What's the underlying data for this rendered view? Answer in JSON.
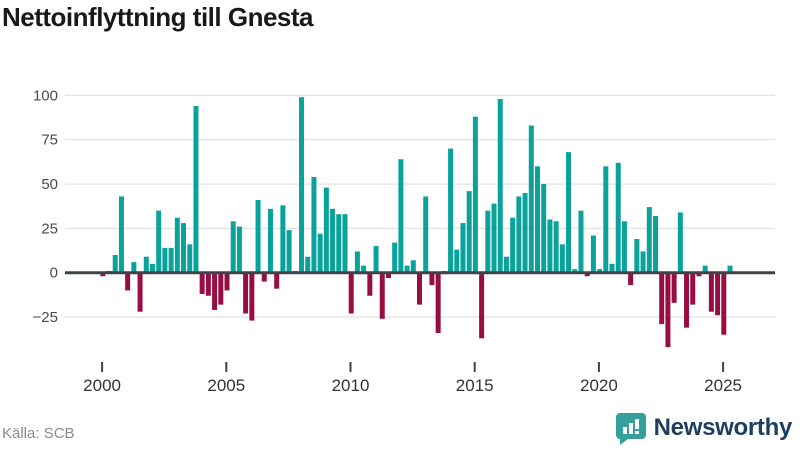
{
  "title": "Nettoinflyttning till Gnesta",
  "source_label": "Källa: SCB",
  "branding": {
    "name": "Newsworthy",
    "icon": "speech-bubble-bar-chart-icon"
  },
  "colors": {
    "positive_bar": "#0aa29a",
    "negative_bar": "#970e44",
    "zero_axis": "#3d4349",
    "gridline": "#e4e4e4",
    "y_label": "#4a4a4a",
    "x_label": "#333333",
    "title": "#191919",
    "source": "#8a8a8a",
    "brand_icon": "#35a09b",
    "brand_text": "#1d3f5f"
  },
  "chart_data": {
    "type": "bar",
    "title": "Nettoinflyttning till Gnesta",
    "xlabel": "",
    "ylabel": "",
    "frequency": "quarterly",
    "start_period": "2000Q1",
    "end_period": "2025Q2",
    "values": [
      -2,
      1,
      10,
      43,
      -10,
      6,
      -22,
      9,
      5,
      35,
      14,
      14,
      31,
      28,
      16,
      94,
      -12,
      -13,
      -21,
      -18,
      -10,
      29,
      26,
      -23,
      -27,
      41,
      -5,
      36,
      -9,
      38,
      24,
      1,
      99,
      9,
      54,
      22,
      48,
      36,
      33,
      33,
      -23,
      12,
      4,
      -13,
      15,
      -26,
      -3,
      17,
      64,
      4,
      7,
      -18,
      43,
      -7,
      -34,
      1,
      70,
      13,
      28,
      46,
      88,
      -37,
      35,
      39,
      98,
      9,
      31,
      43,
      45,
      83,
      60,
      50,
      30,
      29,
      16,
      68,
      2,
      35,
      -2,
      21,
      2,
      60,
      5,
      62,
      29,
      -7,
      19,
      12,
      37,
      32,
      -29,
      -42,
      -17,
      34,
      -31,
      -18,
      -2,
      4,
      -22,
      -24,
      -35,
      4
    ],
    "x_tick_labels": [
      "2000",
      "2005",
      "2010",
      "2015",
      "2020",
      "2025"
    ],
    "quarters_per_tick": 20,
    "y_tick_values": [
      100,
      75,
      50,
      25,
      0,
      -25
    ],
    "y_tick_labels": [
      "100",
      "75",
      "50",
      "25",
      "0",
      "−25"
    ],
    "ylim": [
      -45,
      105
    ],
    "grid": true,
    "legend": false,
    "bar_color_rule": "teal if value >= 0, dark crimson if value < 0"
  }
}
